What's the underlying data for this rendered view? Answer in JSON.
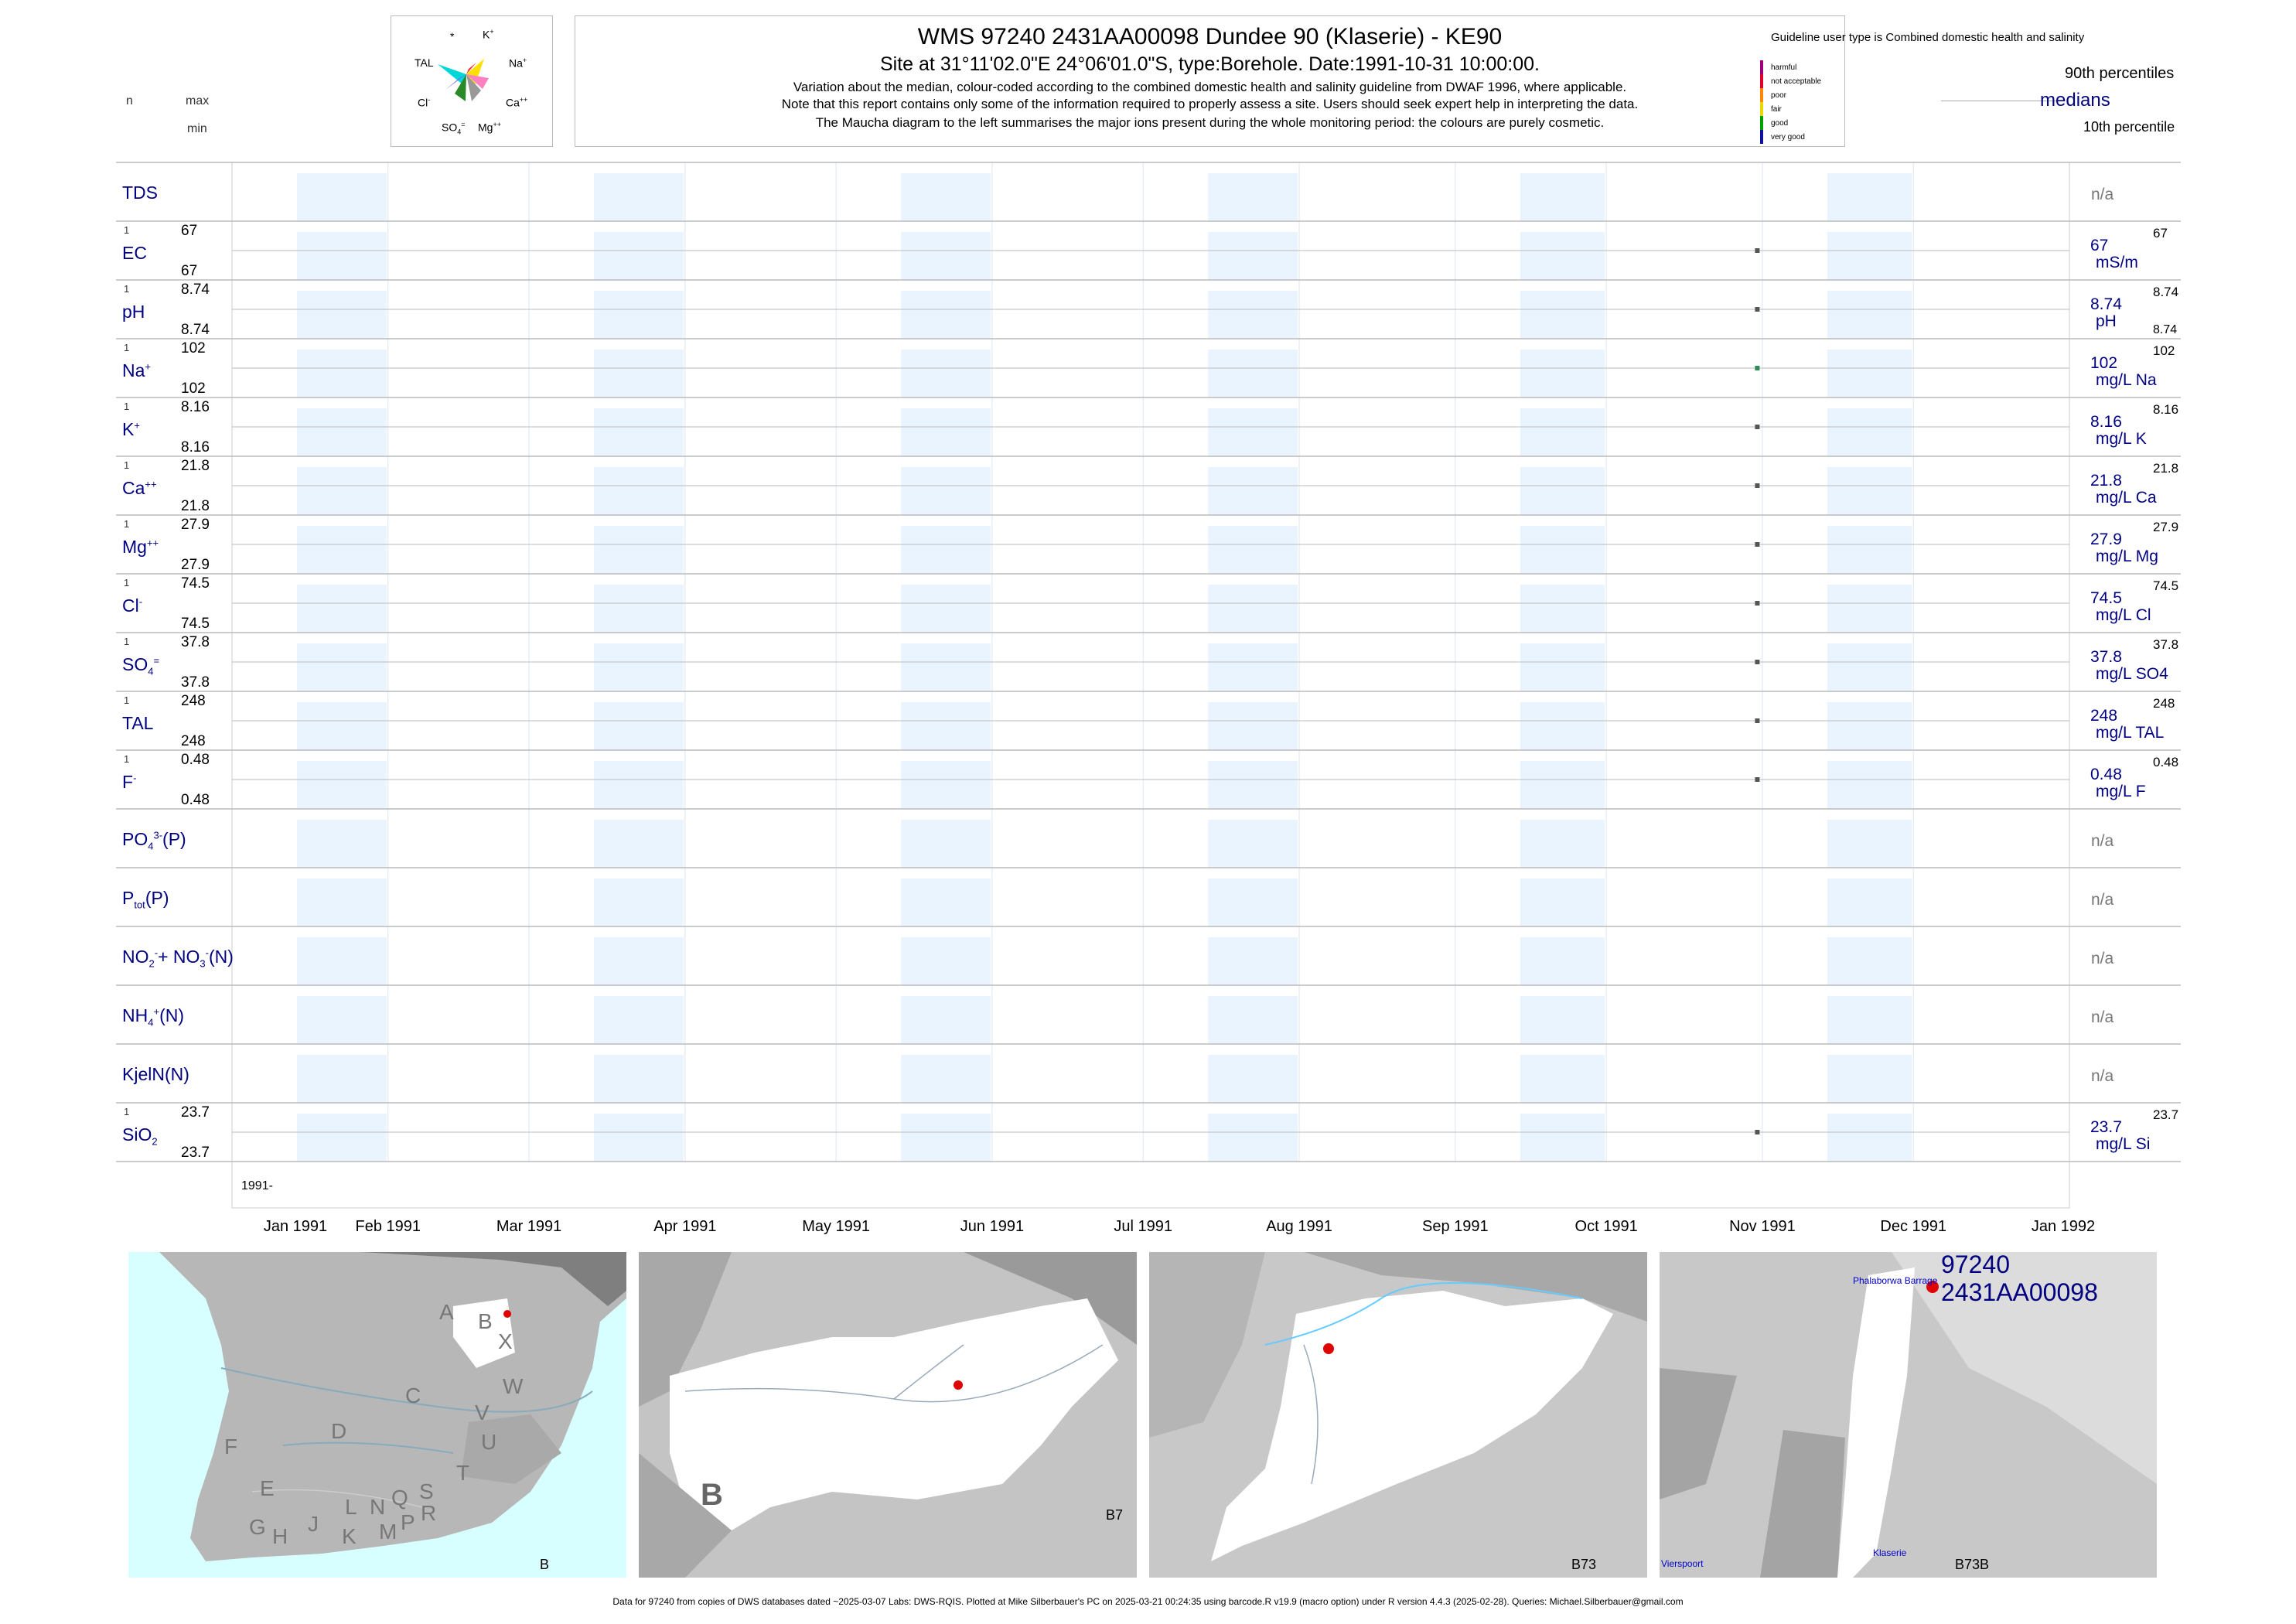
{
  "header": {
    "title": "WMS 97240 2431AA00098 Dundee 90 (Klaserie) - KE90",
    "site_line": "Site at 31°11'02.0\"E 24°06'01.0\"S, type:Borehole. Date:1991-10-31 10:00:00.",
    "note1": "Variation about the median,  colour-coded according to the combined domestic health and salinity guideline from DWAF 1996, where applicable.",
    "note2": "Note that this report contains only some of the information required to properly assess a site. Users should seek expert help in interpreting the data.",
    "note3": "The Maucha diagram to the left summarises the major ions present during the whole monitoring period: the colours are purely cosmetic."
  },
  "left_key": {
    "n": "n",
    "max": "max",
    "min": "min"
  },
  "maucha": {
    "star": "*",
    "k": "K",
    "na": "Na",
    "ca": "Ca",
    "mg": "Mg",
    "so4": "SO",
    "cl": "Cl",
    "tal": "TAL"
  },
  "legend": {
    "guideline": "Guideline user type is Combined domestic health and salinity",
    "categories": [
      {
        "label": "harmful",
        "color": "#a0007a"
      },
      {
        "label": "not acceptable",
        "color": "#e0002a"
      },
      {
        "label": "poor",
        "color": "#ff8800"
      },
      {
        "label": "fair",
        "color": "#e8d800"
      },
      {
        "label": "good",
        "color": "#00a000"
      },
      {
        "label": "very good",
        "color": "#1010a0"
      }
    ],
    "p90": "90th percentiles",
    "medians": "medians",
    "p10": "10th percentile"
  },
  "chart_data": {
    "type": "scatter",
    "x_axis": {
      "range": [
        "1991-01-01",
        "1992-01-01"
      ],
      "ticks": [
        "Jan 1991",
        "Feb 1991",
        "Mar 1991",
        "Apr 1991",
        "May 1991",
        "Jun 1991",
        "Jul 1991",
        "Aug 1991",
        "Sep 1991",
        "Oct 1991",
        "Nov 1991",
        "Dec 1991",
        "Jan 1992"
      ],
      "year_label": "1991-"
    },
    "sample_date": "1991-10-31",
    "rows": [
      {
        "key": "tds",
        "label": "TDS",
        "n": null,
        "max": null,
        "min": null,
        "value": null,
        "value_text": "n/a",
        "unit": "",
        "p90": null,
        "p10": null,
        "color": null
      },
      {
        "key": "ec",
        "label": "EC",
        "n": "1",
        "max": "67",
        "min": "67",
        "value": 67,
        "value_text": "67",
        "unit": "mS/m",
        "p90": "67",
        "p10": "",
        "color": "#555555"
      },
      {
        "key": "ph",
        "label": "pH",
        "n": "1",
        "max": "8.74",
        "min": "8.74",
        "value": 8.74,
        "value_text": "8.74",
        "unit": "pH",
        "p90": "8.74",
        "p10": "8.74",
        "color": "#555555"
      },
      {
        "key": "na",
        "label": "Na",
        "sup": "+",
        "n": "1",
        "max": "102",
        "min": "102",
        "value": 102,
        "value_text": "102",
        "unit": "mg/L Na",
        "p90": "102",
        "p10": "",
        "color": "#2e8b57"
      },
      {
        "key": "k",
        "label": "K",
        "sup": "+",
        "n": "1",
        "max": "8.16",
        "min": "8.16",
        "value": 8.16,
        "value_text": "8.16",
        "unit": "mg/L K",
        "p90": "8.16",
        "p10": "",
        "color": "#555555"
      },
      {
        "key": "ca",
        "label": "Ca",
        "sup": "++",
        "n": "1",
        "max": "21.8",
        "min": "21.8",
        "value": 21.8,
        "value_text": "21.8",
        "unit": "mg/L Ca",
        "p90": "21.8",
        "p10": "",
        "color": "#555555"
      },
      {
        "key": "mg",
        "label": "Mg",
        "sup": "++",
        "n": "1",
        "max": "27.9",
        "min": "27.9",
        "value": 27.9,
        "value_text": "27.9",
        "unit": "mg/L Mg",
        "p90": "27.9",
        "p10": "",
        "color": "#555555"
      },
      {
        "key": "cl",
        "label": "Cl",
        "sup": "-",
        "n": "1",
        "max": "74.5",
        "min": "74.5",
        "value": 74.5,
        "value_text": "74.5",
        "unit": "mg/L Cl",
        "p90": "74.5",
        "p10": "",
        "color": "#555555"
      },
      {
        "key": "so4",
        "label": "SO",
        "sub": "4",
        "sup": "=",
        "n": "1",
        "max": "37.8",
        "min": "37.8",
        "value": 37.8,
        "value_text": "37.8",
        "unit": "mg/L SO4",
        "p90": "37.8",
        "p10": "",
        "color": "#555555"
      },
      {
        "key": "tal",
        "label": "TAL",
        "n": "1",
        "max": "248",
        "min": "248",
        "value": 248,
        "value_text": "248",
        "unit": "mg/L TAL",
        "p90": "248",
        "p10": "",
        "color": "#555555"
      },
      {
        "key": "f",
        "label": "F",
        "sup": "-",
        "n": "1",
        "max": "0.48",
        "min": "0.48",
        "value": 0.48,
        "value_text": "0.48",
        "unit": "mg/L F",
        "p90": "0.48",
        "p10": "",
        "color": "#555555"
      },
      {
        "key": "po4",
        "label": "PO",
        "sub": "4",
        "sup": "3-",
        "suffix": "(P)",
        "n": null,
        "max": null,
        "min": null,
        "value": null,
        "value_text": "n/a",
        "unit": "",
        "p90": null,
        "p10": null,
        "color": null
      },
      {
        "key": "ptot",
        "label": "P",
        "sub": "tot",
        "suffix": "(P)",
        "n": null,
        "max": null,
        "min": null,
        "value": null,
        "value_text": "n/a",
        "unit": "",
        "p90": null,
        "p10": null,
        "color": null
      },
      {
        "key": "no",
        "label": "NO",
        "sub": "2",
        "sup": "-",
        "suffix": "+ NO",
        "sub2": "3",
        "sup2": "-",
        "suffix2": "(N)",
        "n": null,
        "max": null,
        "min": null,
        "value": null,
        "value_text": "n/a",
        "unit": "",
        "p90": null,
        "p10": null,
        "color": null
      },
      {
        "key": "nh4",
        "label": "NH",
        "sub": "4",
        "sup": "+",
        "suffix": "(N)",
        "n": null,
        "max": null,
        "min": null,
        "value": null,
        "value_text": "n/a",
        "unit": "",
        "p90": null,
        "p10": null,
        "color": null
      },
      {
        "key": "kjel",
        "label": "KjelN(N)",
        "n": null,
        "max": null,
        "min": null,
        "value": null,
        "value_text": "n/a",
        "unit": "",
        "p90": null,
        "p10": null,
        "color": null
      },
      {
        "key": "sio2",
        "label": "SiO",
        "sub": "2",
        "n": "1",
        "max": "23.7",
        "min": "23.7",
        "value": 23.7,
        "value_text": "23.7",
        "unit": "mg/L Si",
        "p90": "23.7",
        "p10": "",
        "color": "#555555"
      }
    ]
  },
  "maps": {
    "map1": {
      "letters": [
        "A",
        "B",
        "X",
        "C",
        "W",
        "D",
        "V",
        "U",
        "F",
        "T",
        "E",
        "L",
        "N",
        "Q",
        "S",
        "G",
        "H",
        "J",
        "K",
        "M",
        "P",
        "R"
      ],
      "caption": "B"
    },
    "map2": {
      "big_letter": "B",
      "caption": "B7"
    },
    "map3": {
      "caption": "B73"
    },
    "map4": {
      "caption": "B73B",
      "site_id": "97240",
      "site_code": "2431AA00098",
      "place1": "Phalaborwa Barrage",
      "place2": "Klaserie",
      "place3": "Vierspoort"
    }
  },
  "footer": "Data for 97240 from copies of DWS databases dated ~2025-03-07 Labs: DWS-RQIS. Plotted at Mike Silberbauer's PC on 2025-03-21 00:24:35 using barcode.R v19.9 (macro option) under R version 4.4.3 (2025-02-28). Queries: Michael.Silberbauer@gmail.com"
}
